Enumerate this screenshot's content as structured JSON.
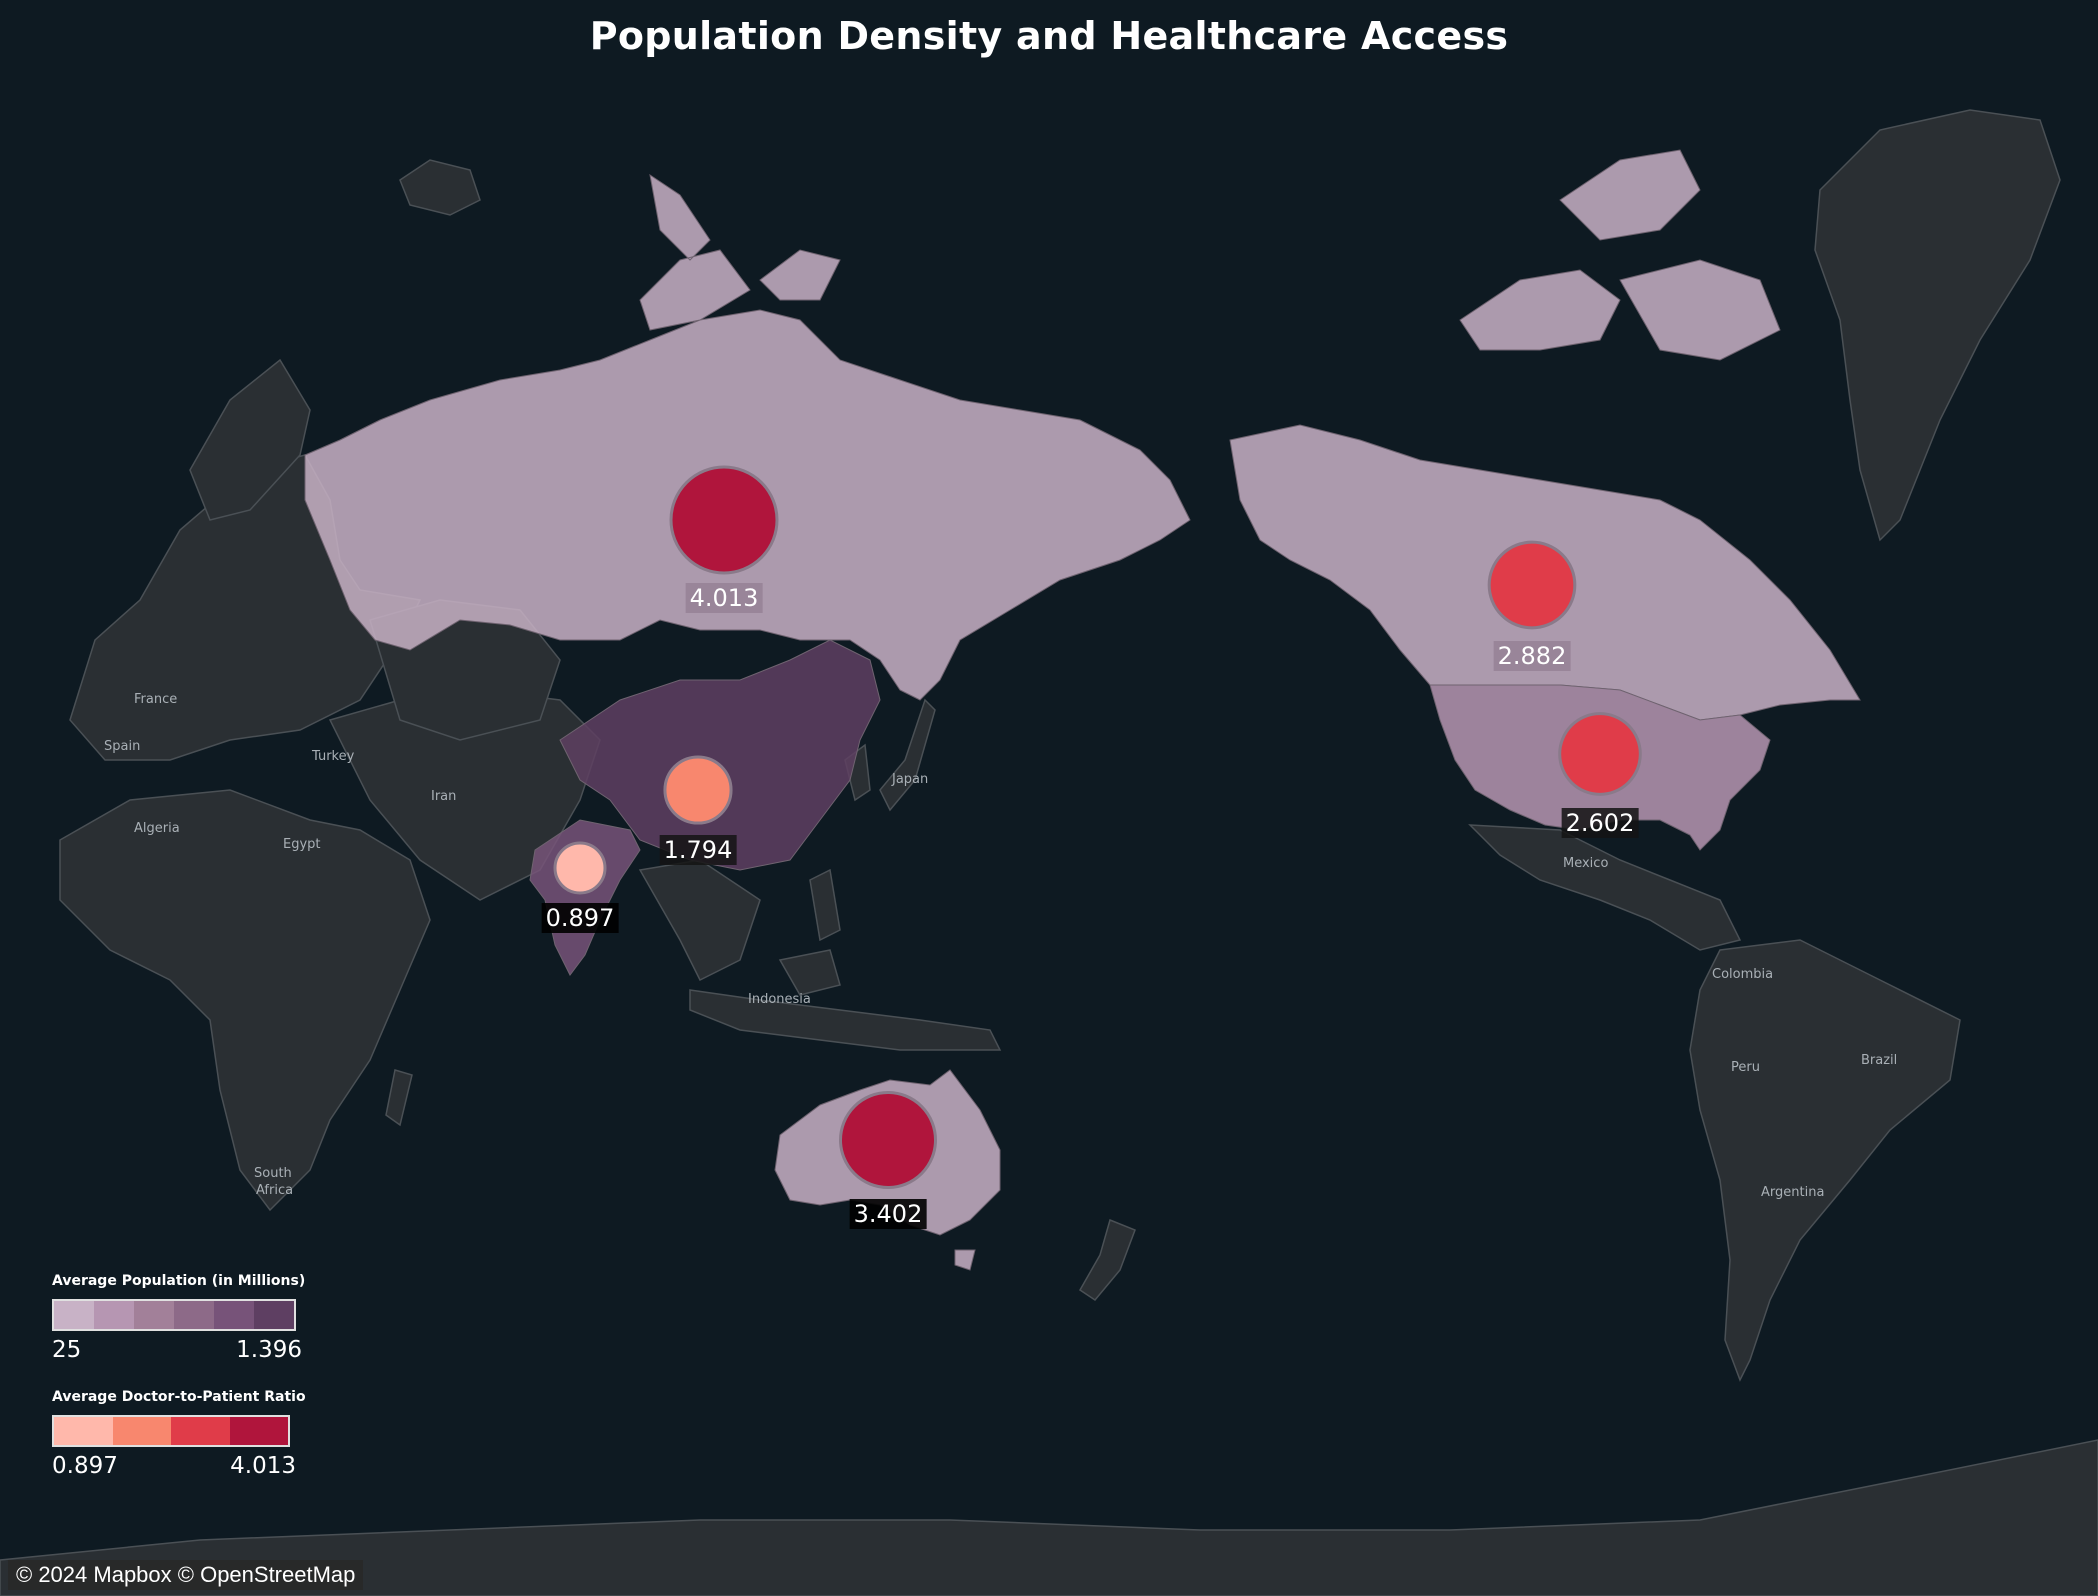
{
  "title": "Population Density and Healthcare Access",
  "colors": {
    "ocean": "#0e1a22",
    "land_base": "#2a2f33",
    "land_border": "#4a5055",
    "population_scale": [
      "#c8b2c6",
      "#b696b2",
      "#a28099",
      "#8d6a88",
      "#775379",
      "#5e3f62"
    ],
    "ratio_scale": [
      "#ffb8ab",
      "#f8876e",
      "#e03c49",
      "#b0153c"
    ]
  },
  "regions": [
    {
      "name": "Russia",
      "population_level": 0
    },
    {
      "name": "China",
      "population_level": 5
    },
    {
      "name": "India",
      "population_level": 4
    },
    {
      "name": "Canada",
      "population_level": 0
    },
    {
      "name": "United States",
      "population_level": 1
    },
    {
      "name": "Australia",
      "population_level": 0
    }
  ],
  "markers": [
    {
      "id": "russia",
      "value": "4.013",
      "ratio": 4.013
    },
    {
      "id": "canada",
      "value": "2.882",
      "ratio": 2.882
    },
    {
      "id": "usa",
      "value": "2.602",
      "ratio": 2.602
    },
    {
      "id": "china",
      "value": "1.794",
      "ratio": 1.794
    },
    {
      "id": "india",
      "value": "0.897",
      "ratio": 0.897
    },
    {
      "id": "australia",
      "value": "3.402",
      "ratio": 3.402
    }
  ],
  "place_labels": {
    "france": "France",
    "spain": "Spain",
    "turkey": "Turkey",
    "iran": "Iran",
    "algeria": "Algeria",
    "egypt": "Egypt",
    "japan": "Japan",
    "indonesia": "Indonesia",
    "mexico": "Mexico",
    "colombia": "Colombia",
    "peru": "Peru",
    "brazil": "Brazil",
    "argentina": "Argentina",
    "south_africa_1": "South",
    "south_africa_2": "Africa"
  },
  "legend_population": {
    "title": "Average Population (in Millions)",
    "min": "25",
    "max": "1.396"
  },
  "legend_ratio": {
    "title": "Average Doctor-to-Patient Ratio",
    "min": "0.897",
    "max": "4.013"
  },
  "attribution": "© 2024 Mapbox © OpenStreetMap"
}
